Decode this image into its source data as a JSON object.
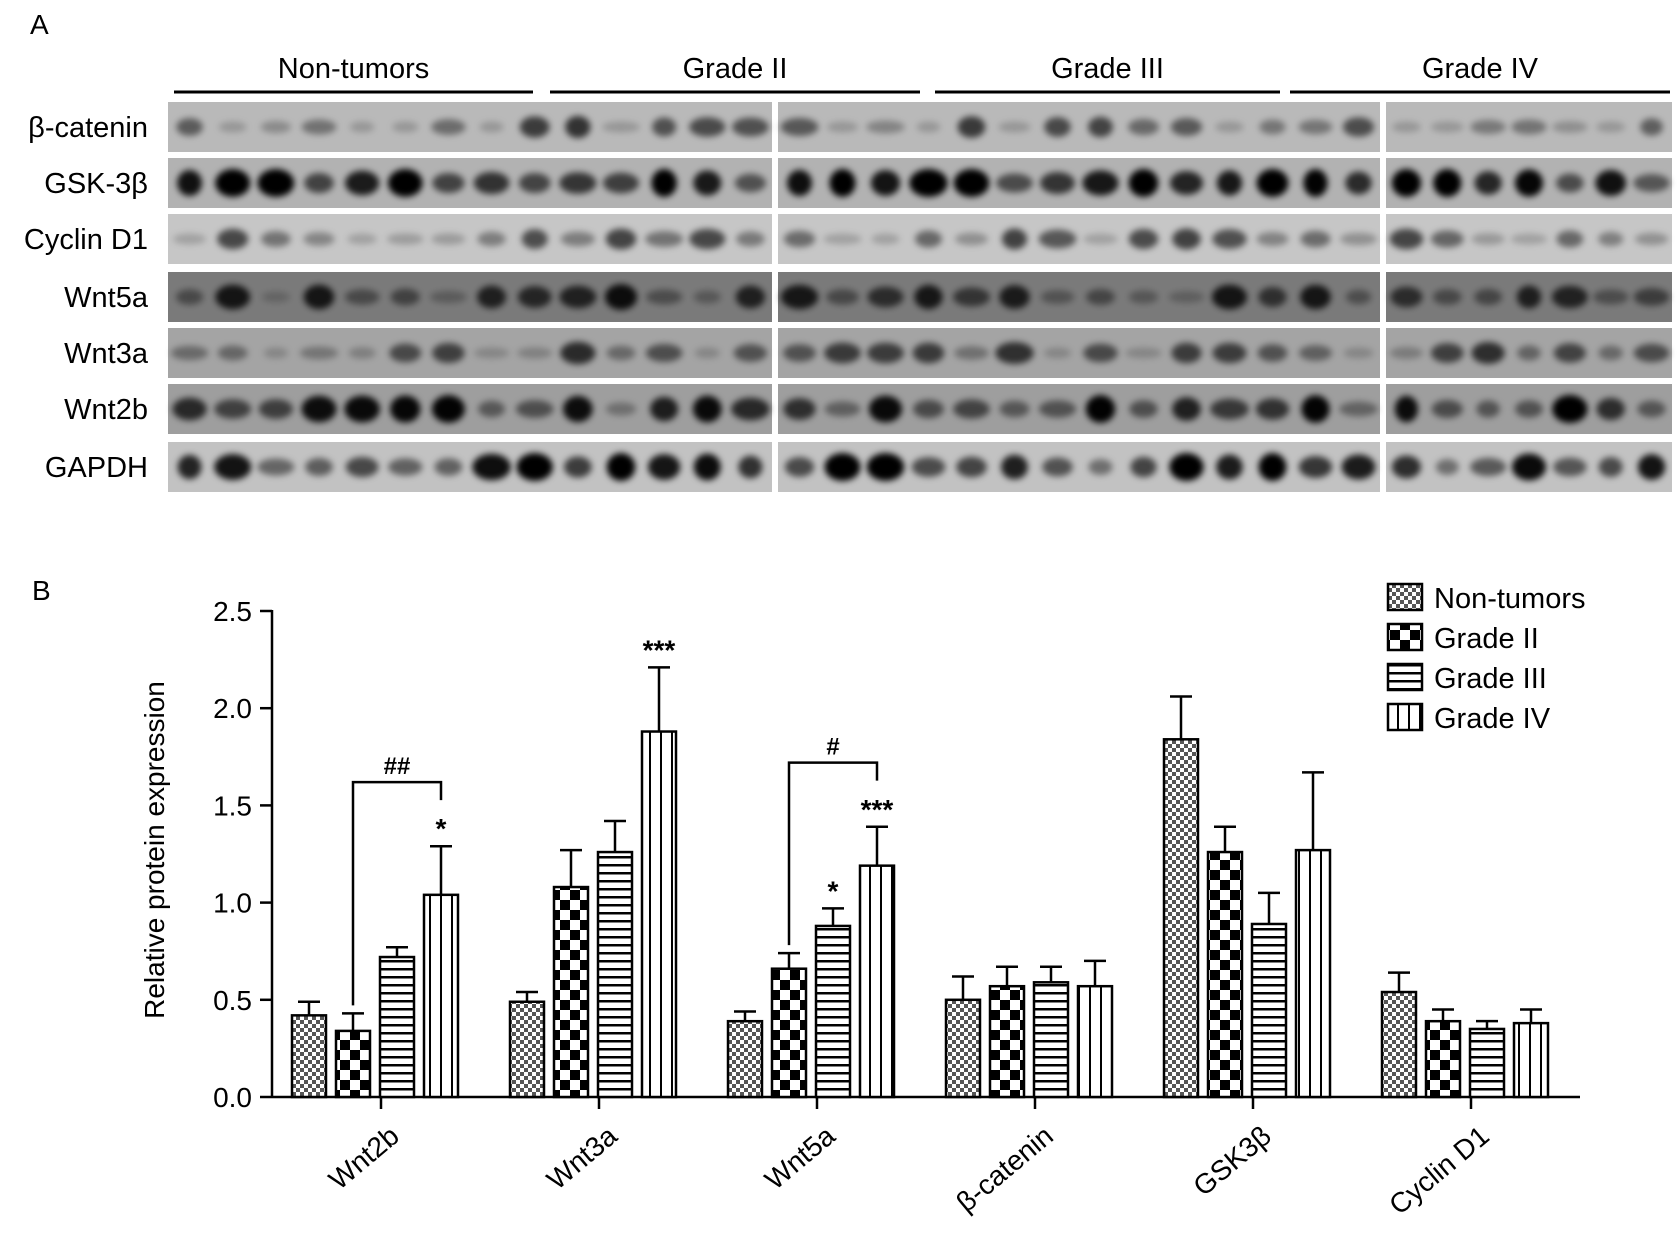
{
  "panel_labels": {
    "a": "A",
    "b": "B"
  },
  "blot": {
    "groups": [
      "Non-tumors",
      "Grade II",
      "Grade III",
      "Grade IV"
    ],
    "rows": [
      "β-catenin",
      "GSK-3β",
      "Cyclin D1",
      "Wnt5a",
      "Wnt3a",
      "Wnt2b",
      "GAPDH"
    ]
  },
  "chart_data": {
    "type": "bar",
    "categories": [
      "Wnt2b",
      "Wnt3a",
      "Wnt5a",
      "β-catenin",
      "GSK3β",
      "Cyclin D1"
    ],
    "series": [
      {
        "name": "Non-tumors",
        "values": [
          0.42,
          0.49,
          0.39,
          0.5,
          1.84,
          0.54
        ],
        "errors": [
          0.07,
          0.05,
          0.05,
          0.12,
          0.22,
          0.1
        ]
      },
      {
        "name": "Grade II",
        "values": [
          0.34,
          1.08,
          0.66,
          0.57,
          1.26,
          0.39
        ],
        "errors": [
          0.09,
          0.19,
          0.08,
          0.1,
          0.13,
          0.06
        ]
      },
      {
        "name": "Grade III",
        "values": [
          0.72,
          1.26,
          0.88,
          0.59,
          0.89,
          0.35
        ],
        "errors": [
          0.05,
          0.16,
          0.09,
          0.08,
          0.16,
          0.04
        ]
      },
      {
        "name": "Grade IV",
        "values": [
          1.04,
          1.88,
          1.19,
          0.57,
          1.27,
          0.38
        ],
        "errors": [
          0.25,
          0.33,
          0.2,
          0.13,
          0.4,
          0.07
        ]
      }
    ],
    "ylabel": "Relative protein expression",
    "xlabel": "",
    "ylim": [
      0,
      2.5
    ],
    "yticks": [
      "0.0",
      "0.5",
      "1.0",
      "1.5",
      "2.0",
      "2.5"
    ],
    "legend_position": "top-right",
    "annotations": [
      {
        "category": "Wnt2b",
        "series": "Grade IV",
        "text": "*"
      },
      {
        "category": "Wnt3a",
        "series": "Grade IV",
        "text": "***"
      },
      {
        "category": "Wnt5a",
        "series": "Grade III",
        "text": "*"
      },
      {
        "category": "Wnt5a",
        "series": "Grade IV",
        "text": "***"
      }
    ],
    "brackets": [
      {
        "category": "Wnt2b",
        "from": "Grade II",
        "to": "Grade IV",
        "text": "##",
        "level": 1.62
      },
      {
        "category": "Wnt5a",
        "from": "Grade II",
        "to": "Grade IV",
        "text": "#",
        "level": 1.72
      }
    ]
  }
}
